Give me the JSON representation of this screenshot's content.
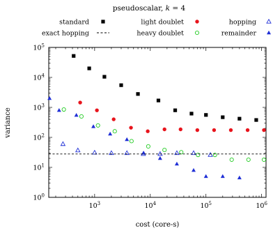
{
  "chart_data": {
    "type": "scatter",
    "title_prefix": "pseudoscalar, ",
    "title_math": "k",
    "title_suffix": " = 4",
    "xlabel": "cost (core-s)",
    "ylabel": "variance",
    "x_scale": "log",
    "y_scale": "log",
    "xlim": [
      150,
      1200000
    ],
    "ylim": [
      1,
      100000
    ],
    "x_ticks": [
      {
        "value": 1000,
        "mant": "10",
        "exp": "3"
      },
      {
        "value": 10000,
        "mant": "10",
        "exp": "4"
      },
      {
        "value": 100000,
        "mant": "10",
        "exp": "5"
      },
      {
        "value": 1000000,
        "mant": "10",
        "exp": "6"
      }
    ],
    "y_ticks": [
      {
        "value": 1,
        "mant": "10",
        "exp": "0"
      },
      {
        "value": 10,
        "mant": "10",
        "exp": "1"
      },
      {
        "value": 100,
        "mant": "10",
        "exp": "2"
      },
      {
        "value": 1000,
        "mant": "10",
        "exp": "3"
      },
      {
        "value": 10000,
        "mant": "10",
        "exp": "4"
      },
      {
        "value": 100000,
        "mant": "10",
        "exp": "5"
      }
    ],
    "grid": false,
    "legend_position": "top",
    "series": [
      {
        "name": "standard",
        "marker": "square",
        "color": "#000000",
        "points": [
          [
            420,
            52000
          ],
          [
            800,
            20000
          ],
          [
            1500,
            10500
          ],
          [
            3000,
            5500
          ],
          [
            6000,
            2800
          ],
          [
            14000,
            1700
          ],
          [
            28000,
            800
          ],
          [
            55000,
            620
          ],
          [
            100000,
            560
          ],
          [
            200000,
            470
          ],
          [
            400000,
            420
          ],
          [
            800000,
            380
          ]
        ]
      },
      {
        "name": "light doublet",
        "marker": "filled-circle",
        "color": "#e8141c",
        "points": [
          [
            550,
            1450
          ],
          [
            1100,
            800
          ],
          [
            2200,
            400
          ],
          [
            4500,
            210
          ],
          [
            9000,
            160
          ],
          [
            18000,
            185
          ],
          [
            35000,
            185
          ],
          [
            70000,
            175
          ],
          [
            140000,
            175
          ],
          [
            280000,
            175
          ],
          [
            560000,
            175
          ],
          [
            1100000,
            175
          ]
        ]
      },
      {
        "name": "heavy doublet",
        "marker": "open-circle",
        "color": "#22cc22",
        "points": [
          [
            280,
            850
          ],
          [
            580,
            500
          ],
          [
            1150,
            250
          ],
          [
            2300,
            160
          ],
          [
            4600,
            75
          ],
          [
            9200,
            50
          ],
          [
            18000,
            38
          ],
          [
            36000,
            32
          ],
          [
            72000,
            26
          ],
          [
            145000,
            26
          ],
          [
            290000,
            18
          ],
          [
            580000,
            18
          ],
          [
            1100000,
            18
          ]
        ]
      },
      {
        "name": "hopping",
        "marker": "open-triangle",
        "color": "#1f2fd6",
        "points": [
          [
            270,
            60
          ],
          [
            500,
            37
          ],
          [
            1000,
            31
          ],
          [
            2000,
            30
          ],
          [
            3800,
            30
          ],
          [
            7500,
            28
          ],
          [
            15000,
            28
          ],
          [
            30000,
            30
          ],
          [
            60000,
            30
          ],
          [
            120000,
            26
          ]
        ]
      },
      {
        "name": "remainder",
        "marker": "filled-triangle",
        "color": "#1f2fd6",
        "points": [
          [
            155,
            2000
          ],
          [
            230,
            800
          ],
          [
            470,
            550
          ],
          [
            950,
            230
          ],
          [
            1900,
            130
          ],
          [
            3800,
            85
          ],
          [
            7600,
            30
          ],
          [
            15000,
            20
          ],
          [
            30000,
            13
          ],
          [
            60000,
            8
          ],
          [
            100000,
            5
          ],
          [
            200000,
            5
          ],
          [
            400000,
            4.5
          ]
        ]
      },
      {
        "name": "exact hopping",
        "marker": "dashed-line",
        "color": "#000000",
        "y": 28
      }
    ],
    "legend_rows": [
      [
        "standard",
        "light doublet",
        "hopping"
      ],
      [
        "exact hopping",
        "heavy doublet",
        "remainder"
      ]
    ]
  }
}
